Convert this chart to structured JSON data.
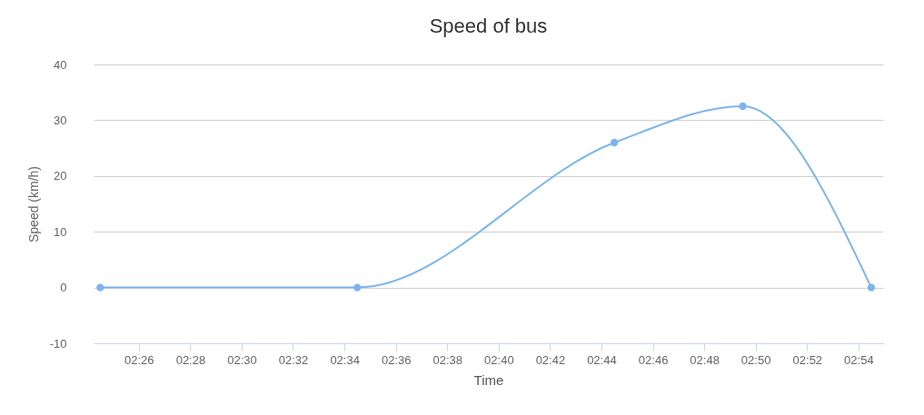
{
  "chart_data": {
    "type": "line",
    "title": "Speed of bus",
    "xlabel": "Time",
    "ylabel": "Speed (km/h)",
    "x": [
      2.4083,
      2.575,
      2.7417,
      2.825,
      2.9083
    ],
    "series": [
      {
        "color": "#7cb5ec",
        "values": [
          0,
          0,
          26,
          32.5,
          0
        ]
      }
    ],
    "xlim": [
      2.404,
      2.916
    ],
    "xticks": [
      {
        "value": 2.4333,
        "label": "02:26"
      },
      {
        "value": 2.4667,
        "label": "02:28"
      },
      {
        "value": 2.5,
        "label": "02:30"
      },
      {
        "value": 2.5333,
        "label": "02:32"
      },
      {
        "value": 2.5667,
        "label": "02:34"
      },
      {
        "value": 2.6,
        "label": "02:36"
      },
      {
        "value": 2.6333,
        "label": "02:38"
      },
      {
        "value": 2.6667,
        "label": "02:40"
      },
      {
        "value": 2.7,
        "label": "02:42"
      },
      {
        "value": 2.7333,
        "label": "02:44"
      },
      {
        "value": 2.7667,
        "label": "02:46"
      },
      {
        "value": 2.8,
        "label": "02:48"
      },
      {
        "value": 2.8333,
        "label": "02:50"
      },
      {
        "value": 2.8667,
        "label": "02:52"
      },
      {
        "value": 2.9,
        "label": "02:54"
      }
    ],
    "ylim": [
      -10,
      40
    ],
    "yticks": [
      -10,
      0,
      10,
      20,
      30,
      40
    ],
    "grid": "y",
    "marker": "circle",
    "line_style": "solid"
  }
}
